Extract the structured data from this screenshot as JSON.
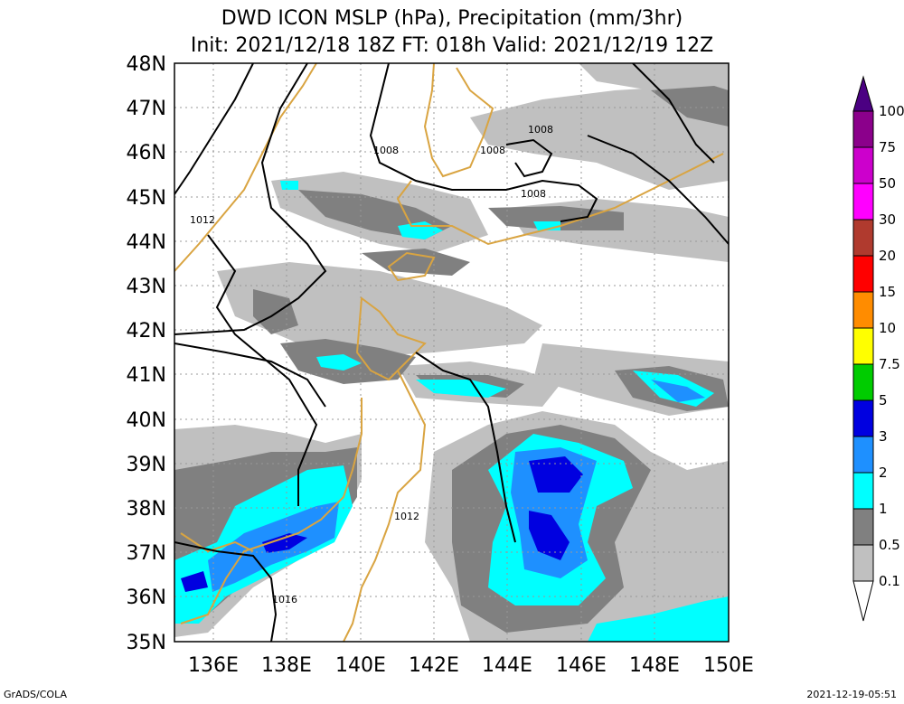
{
  "title": {
    "line1": "DWD ICON MSLP (hPa), Precipitation (mm/3hr)",
    "line2": "Init: 2021/12/18 18Z  FT: 018h  Valid: 2021/12/19 12Z"
  },
  "map": {
    "lat_labels": [
      "48N",
      "47N",
      "46N",
      "45N",
      "44N",
      "43N",
      "42N",
      "41N",
      "40N",
      "39N",
      "38N",
      "37N",
      "36N",
      "35N"
    ],
    "lon_labels": [
      "136E",
      "138E",
      "140E",
      "142E",
      "144E",
      "146E",
      "148E",
      "150E"
    ],
    "isobar_labels": [
      "1008",
      "1008",
      "1008",
      "1008",
      "1012",
      "1012",
      "1016"
    ],
    "colors": {
      "coastline": "#d9a441",
      "isobar": "#000000",
      "grid": "#999999"
    }
  },
  "colorbar": {
    "labels": [
      "100",
      "75",
      "50",
      "30",
      "20",
      "15",
      "10",
      "7.5",
      "5",
      "3",
      "2",
      "1",
      "0.5",
      "0.1"
    ],
    "colors": [
      "#4b0082",
      "#8b008b",
      "#cc00cc",
      "#ff00ff",
      "#b03a2e",
      "#ff0000",
      "#ff8c00",
      "#ffff00",
      "#00cc00",
      "#0000e0",
      "#1e90ff",
      "#00ffff",
      "#808080",
      "#c0c0c0",
      "#ffffff"
    ]
  },
  "footer": {
    "left": "GrADS/COLA",
    "right": "2021-12-19-05:51"
  }
}
